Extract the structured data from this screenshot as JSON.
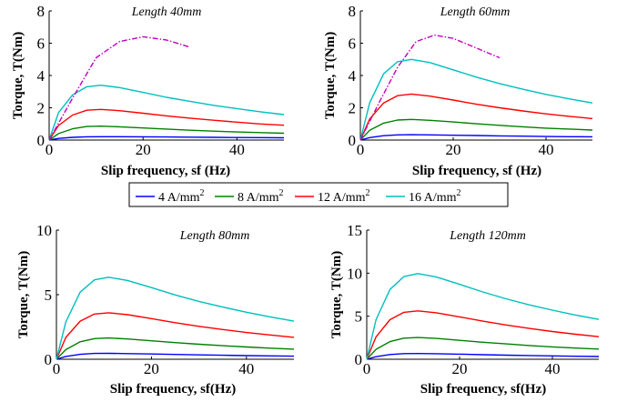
{
  "legend": {
    "entries": [
      {
        "label": "4 A/mm",
        "sup": "2",
        "color": "#0000ff"
      },
      {
        "label": "8 A/mm",
        "sup": "2",
        "color": "#008000"
      },
      {
        "label": "12 A/mm",
        "sup": "2",
        "color": "#ff0000"
      },
      {
        "label": "16 A/mm",
        "sup": "2",
        "color": "#00bfbf"
      }
    ],
    "placement": "center"
  },
  "chart_data": [
    {
      "type": "line",
      "title": "Length 40mm",
      "xlabel": "Slip frequency, sf (Hz)",
      "ylabel": "Torque, T(Nm)",
      "xlim": [
        0,
        50
      ],
      "ylim": [
        0,
        8
      ],
      "xticks": [
        0,
        20,
        40
      ],
      "yticks": [
        0,
        2,
        4,
        6,
        8
      ],
      "series": [
        {
          "name": "4 A/mm2",
          "color": "#0000ff",
          "style": "solid",
          "x": [
            0,
            2,
            5,
            8,
            11,
            15,
            20,
            25,
            30,
            35,
            40,
            45,
            50
          ],
          "y": [
            0,
            0.1,
            0.17,
            0.2,
            0.21,
            0.21,
            0.2,
            0.19,
            0.18,
            0.17,
            0.16,
            0.15,
            0.14
          ]
        },
        {
          "name": "8 A/mm2",
          "color": "#008000",
          "style": "solid",
          "x": [
            0,
            2,
            5,
            8,
            11,
            15,
            20,
            25,
            30,
            35,
            40,
            45,
            50
          ],
          "y": [
            0,
            0.4,
            0.7,
            0.84,
            0.86,
            0.82,
            0.75,
            0.68,
            0.61,
            0.55,
            0.5,
            0.46,
            0.42
          ]
        },
        {
          "name": "12 A/mm2",
          "color": "#ff0000",
          "style": "solid",
          "x": [
            0,
            2,
            5,
            8,
            11,
            15,
            20,
            25,
            30,
            35,
            40,
            45,
            50
          ],
          "y": [
            0,
            0.9,
            1.55,
            1.85,
            1.9,
            1.82,
            1.66,
            1.5,
            1.36,
            1.23,
            1.11,
            1.0,
            0.92
          ]
        },
        {
          "name": "16 A/mm2",
          "color": "#00bfbf",
          "style": "solid",
          "x": [
            0,
            2,
            5,
            8,
            11,
            15,
            20,
            25,
            30,
            35,
            40,
            45,
            50
          ],
          "y": [
            0,
            1.7,
            2.8,
            3.3,
            3.4,
            3.25,
            2.95,
            2.65,
            2.4,
            2.15,
            1.95,
            1.75,
            1.58
          ]
        },
        {
          "color": "#c000c0",
          "style": "dashdot",
          "x": [
            0,
            5,
            10,
            15,
            20,
            25,
            30
          ],
          "y": [
            0,
            2.6,
            5.1,
            6.1,
            6.4,
            6.2,
            5.75
          ]
        }
      ]
    },
    {
      "type": "line",
      "title": "Length 60mm",
      "xlabel": "Slip frequency, sf (Hz)",
      "ylabel": "Torque, T(Nm)",
      "xlim": [
        0,
        50
      ],
      "ylim": [
        0,
        8
      ],
      "xticks": [
        0,
        20,
        40
      ],
      "yticks": [
        0,
        2,
        4,
        6,
        8
      ],
      "series": [
        {
          "name": "4 A/mm2",
          "color": "#0000ff",
          "style": "solid",
          "x": [
            0,
            2,
            5,
            8,
            11,
            15,
            20,
            25,
            30,
            35,
            40,
            45,
            50
          ],
          "y": [
            0,
            0.15,
            0.27,
            0.32,
            0.33,
            0.32,
            0.3,
            0.28,
            0.26,
            0.24,
            0.22,
            0.21,
            0.2
          ]
        },
        {
          "name": "8 A/mm2",
          "color": "#008000",
          "style": "solid",
          "x": [
            0,
            2,
            5,
            8,
            11,
            15,
            20,
            25,
            30,
            35,
            40,
            45,
            50
          ],
          "y": [
            0,
            0.6,
            1.05,
            1.24,
            1.28,
            1.22,
            1.12,
            1.01,
            0.91,
            0.82,
            0.74,
            0.68,
            0.62
          ]
        },
        {
          "name": "12 A/mm2",
          "color": "#ff0000",
          "style": "solid",
          "x": [
            0,
            2,
            5,
            8,
            11,
            15,
            20,
            25,
            30,
            35,
            40,
            45,
            50
          ],
          "y": [
            0,
            1.3,
            2.3,
            2.75,
            2.85,
            2.72,
            2.48,
            2.22,
            2.0,
            1.8,
            1.62,
            1.47,
            1.33
          ]
        },
        {
          "name": "16 A/mm2",
          "color": "#00bfbf",
          "style": "solid",
          "x": [
            0,
            2,
            5,
            8,
            11,
            15,
            20,
            25,
            30,
            35,
            40,
            45,
            50
          ],
          "y": [
            0,
            2.3,
            4.1,
            4.85,
            5.0,
            4.8,
            4.35,
            3.9,
            3.5,
            3.15,
            2.83,
            2.55,
            2.3
          ]
        },
        {
          "color": "#c000c0",
          "style": "dashdot",
          "x": [
            0,
            4,
            8,
            12,
            16,
            20,
            25,
            30
          ],
          "y": [
            0,
            2.3,
            4.5,
            6.1,
            6.5,
            6.3,
            5.7,
            5.1
          ]
        }
      ]
    },
    {
      "type": "line",
      "title": "Length 80mm",
      "xlabel": "Slip frequency, sf(Hz)",
      "ylabel": "Torque, T(Nm)",
      "xlim": [
        0,
        50
      ],
      "ylim": [
        0,
        10
      ],
      "xticks": [
        0,
        20,
        40
      ],
      "yticks": [
        0,
        5,
        10
      ],
      "series": [
        {
          "name": "4 A/mm2",
          "color": "#0000ff",
          "style": "solid",
          "x": [
            0,
            2,
            5,
            8,
            11,
            15,
            20,
            25,
            30,
            35,
            40,
            45,
            50
          ],
          "y": [
            0,
            0.22,
            0.38,
            0.45,
            0.46,
            0.44,
            0.41,
            0.37,
            0.34,
            0.31,
            0.28,
            0.26,
            0.24
          ]
        },
        {
          "name": "8 A/mm2",
          "color": "#008000",
          "style": "solid",
          "x": [
            0,
            2,
            5,
            8,
            11,
            15,
            20,
            25,
            30,
            35,
            40,
            45,
            50
          ],
          "y": [
            0,
            0.75,
            1.35,
            1.6,
            1.65,
            1.57,
            1.43,
            1.29,
            1.16,
            1.05,
            0.95,
            0.86,
            0.78
          ]
        },
        {
          "name": "12 A/mm2",
          "color": "#ff0000",
          "style": "solid",
          "x": [
            0,
            2,
            5,
            8,
            11,
            15,
            20,
            25,
            30,
            35,
            40,
            45,
            50
          ],
          "y": [
            0,
            1.7,
            2.95,
            3.5,
            3.6,
            3.45,
            3.15,
            2.83,
            2.55,
            2.3,
            2.07,
            1.88,
            1.7
          ]
        },
        {
          "name": "16 A/mm2",
          "color": "#00bfbf",
          "style": "solid",
          "x": [
            0,
            2,
            5,
            8,
            11,
            15,
            20,
            25,
            30,
            35,
            40,
            45,
            50
          ],
          "y": [
            0,
            2.9,
            5.2,
            6.15,
            6.35,
            6.1,
            5.55,
            4.98,
            4.48,
            4.04,
            3.64,
            3.28,
            2.95
          ]
        }
      ]
    },
    {
      "type": "line",
      "title": "Length 120mm",
      "xlabel": "Slip frequency, sf(Hz)",
      "ylabel": "Torque, T(Nm)",
      "xlim": [
        0,
        50
      ],
      "ylim": [
        0,
        15
      ],
      "xticks": [
        0,
        20,
        40
      ],
      "yticks": [
        0,
        5,
        10,
        15
      ],
      "series": [
        {
          "name": "4 A/mm2",
          "color": "#0000ff",
          "style": "solid",
          "x": [
            0,
            2,
            5,
            8,
            11,
            15,
            20,
            25,
            30,
            35,
            40,
            45,
            50
          ],
          "y": [
            0,
            0.3,
            0.55,
            0.65,
            0.67,
            0.64,
            0.59,
            0.53,
            0.48,
            0.43,
            0.39,
            0.35,
            0.32
          ]
        },
        {
          "name": "8 A/mm2",
          "color": "#008000",
          "style": "solid",
          "x": [
            0,
            2,
            5,
            8,
            11,
            15,
            20,
            25,
            30,
            35,
            40,
            45,
            50
          ],
          "y": [
            0,
            1.15,
            2.05,
            2.45,
            2.52,
            2.42,
            2.2,
            1.98,
            1.78,
            1.6,
            1.44,
            1.3,
            1.18
          ]
        },
        {
          "name": "12 A/mm2",
          "color": "#ff0000",
          "style": "solid",
          "x": [
            0,
            2,
            5,
            8,
            11,
            15,
            20,
            25,
            30,
            35,
            40,
            45,
            50
          ],
          "y": [
            0,
            2.6,
            4.6,
            5.45,
            5.62,
            5.4,
            4.92,
            4.43,
            3.98,
            3.58,
            3.22,
            2.9,
            2.62
          ]
        },
        {
          "name": "16 A/mm2",
          "color": "#00bfbf",
          "style": "solid",
          "x": [
            0,
            2,
            5,
            8,
            11,
            15,
            20,
            25,
            30,
            35,
            40,
            45,
            50
          ],
          "y": [
            0,
            4.6,
            8.1,
            9.6,
            9.95,
            9.55,
            8.7,
            7.82,
            7.02,
            6.32,
            5.7,
            5.13,
            4.63
          ]
        }
      ]
    }
  ]
}
